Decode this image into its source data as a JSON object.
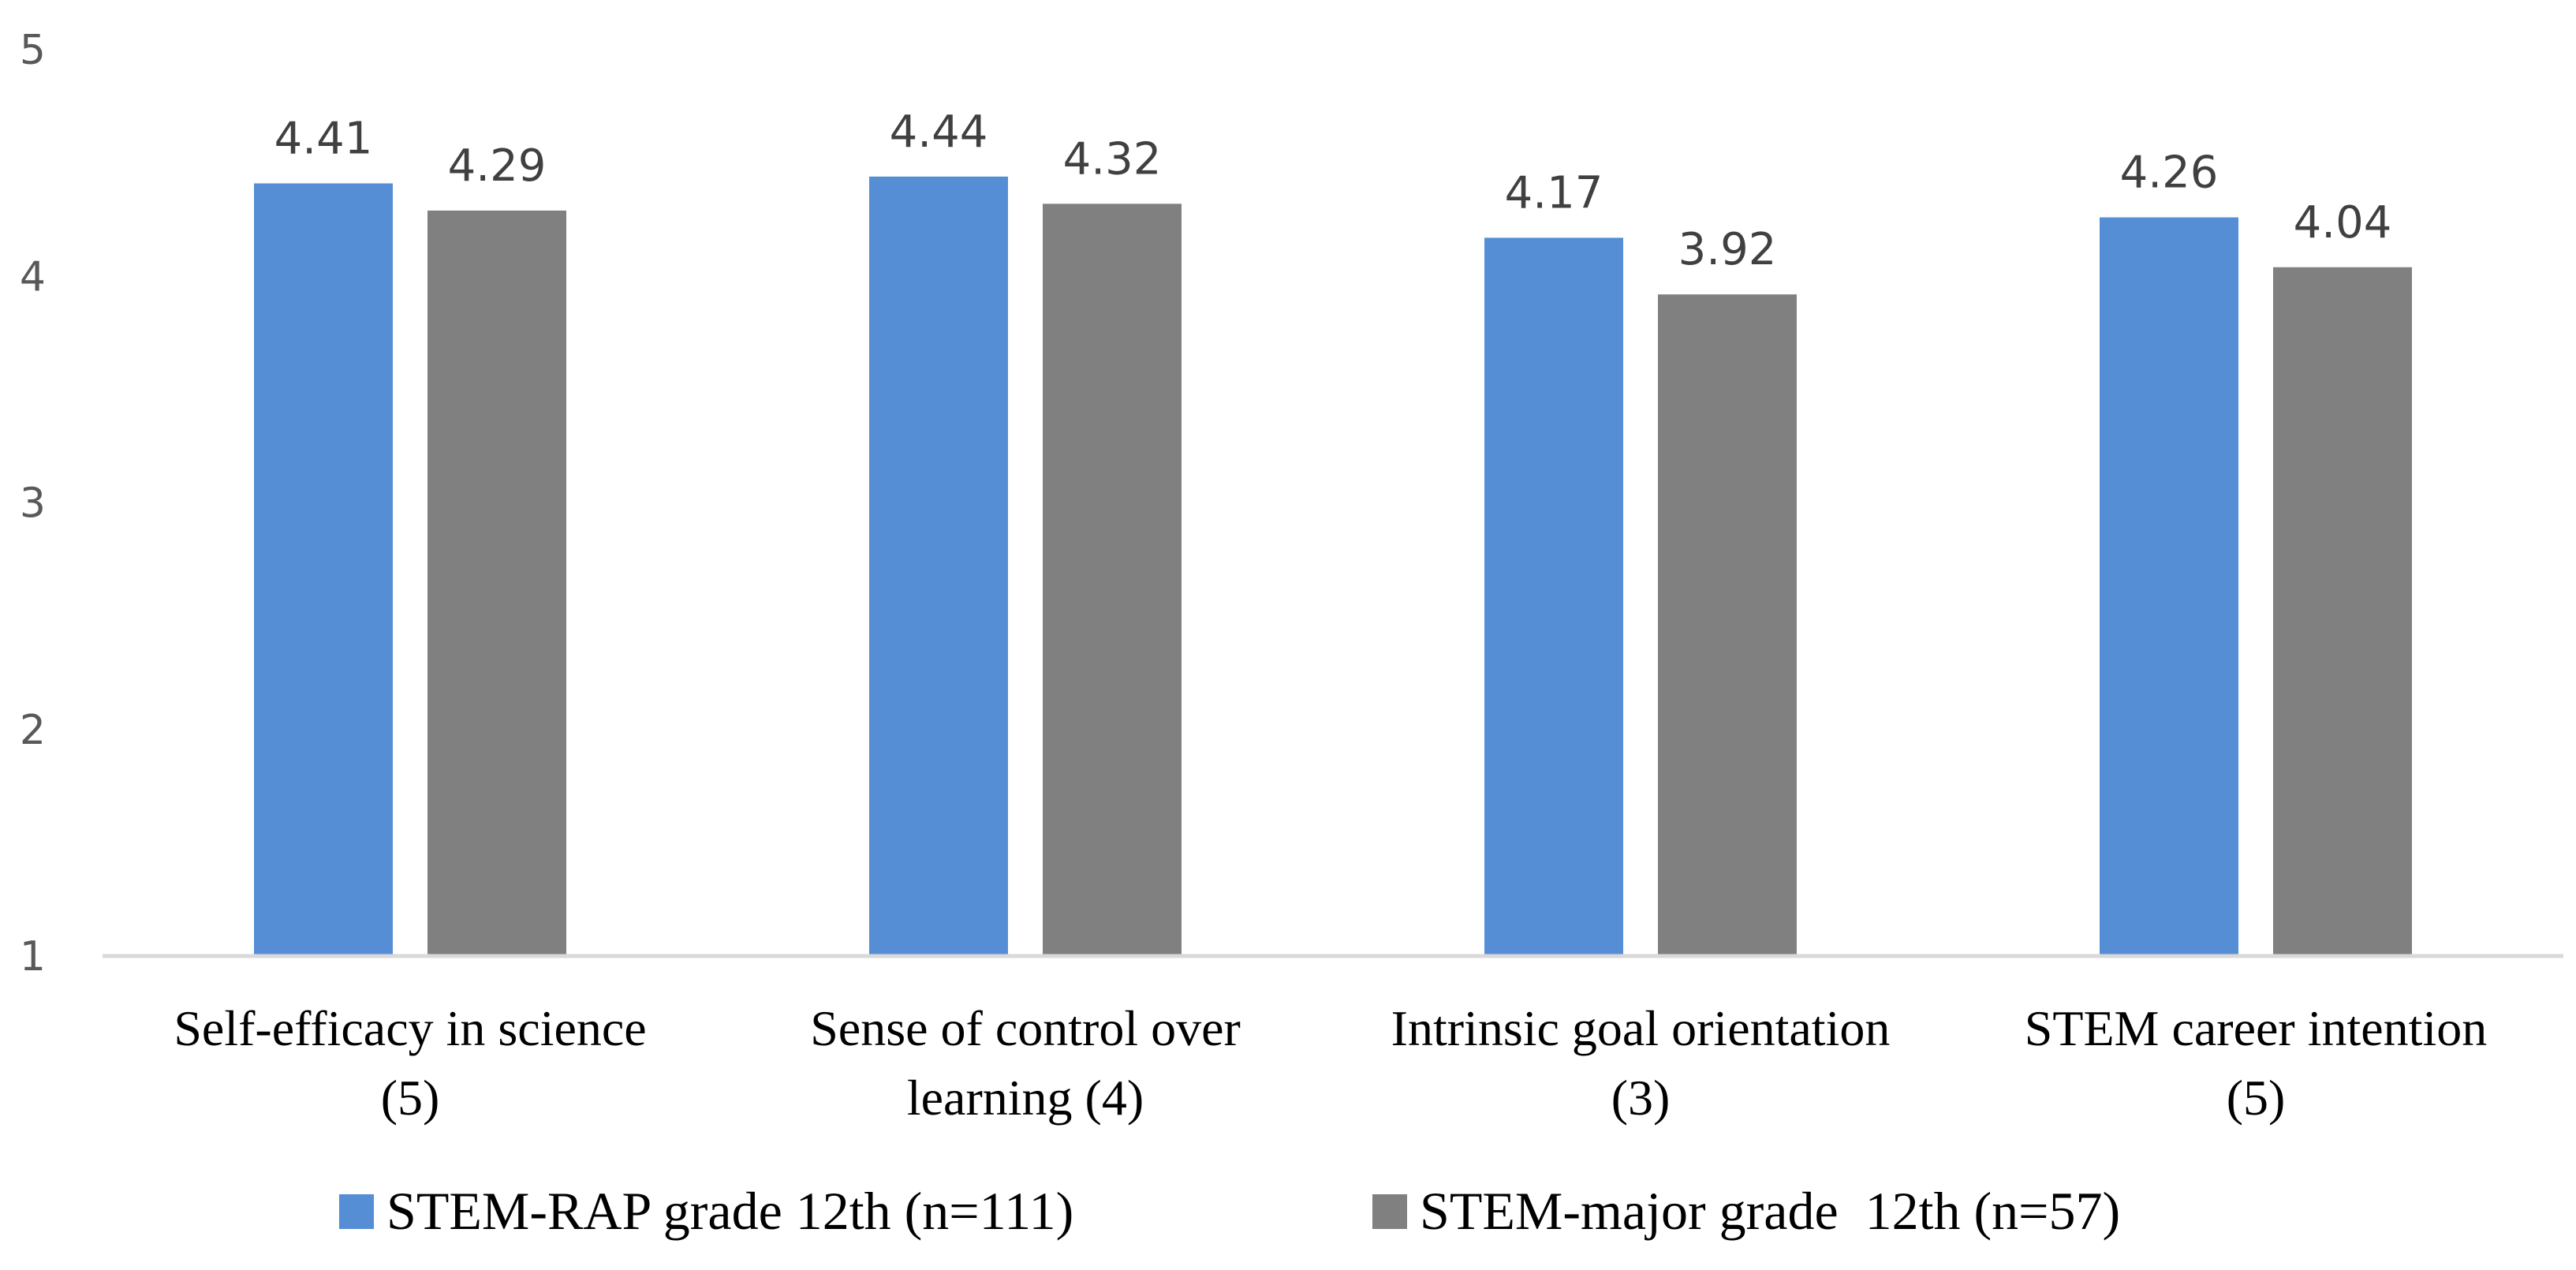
{
  "chart_data": {
    "type": "bar",
    "categories": [
      [
        "Self-efficacy in science",
        "(5)"
      ],
      [
        "Sense of control over",
        "learning (4)"
      ],
      [
        "Intrinsic goal orientation",
        "(3)"
      ],
      [
        "STEM career intention",
        "(5)"
      ]
    ],
    "series": [
      {
        "name": "STEM-RAP grade 12th (n=111)",
        "color": "#558ed5",
        "values": [
          4.41,
          4.44,
          4.17,
          4.26
        ]
      },
      {
        "name": "STEM-major grade  12th (n=57)",
        "color": "#808080",
        "values": [
          4.29,
          4.32,
          3.92,
          4.04
        ]
      }
    ],
    "y_ticks": [
      "1",
      "2",
      "3",
      "4",
      "5"
    ],
    "ylim": [
      1,
      5
    ],
    "grid": false,
    "legend_position": "bottom-center",
    "data_labels": true,
    "axis_color": "#d9d9d9"
  }
}
